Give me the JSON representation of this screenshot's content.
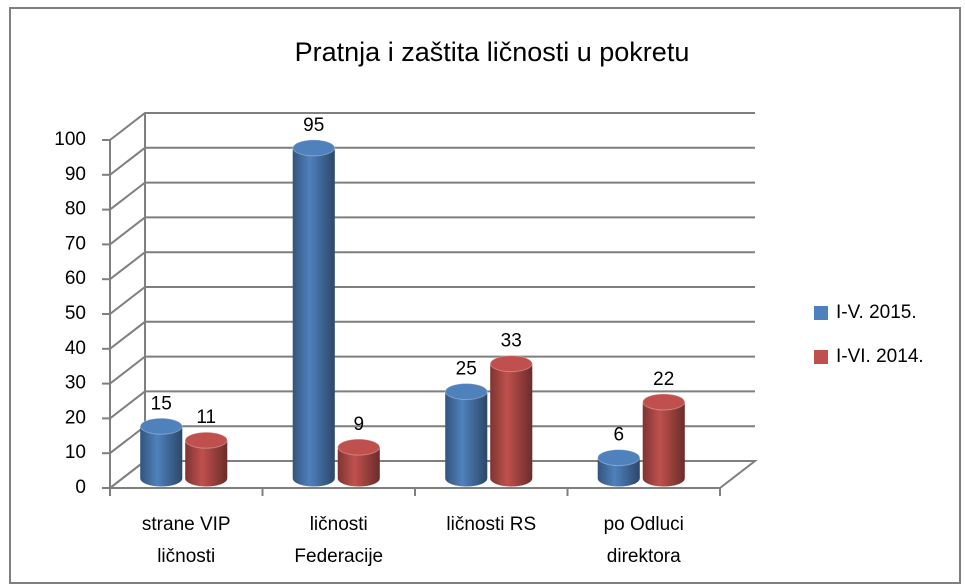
{
  "chart_data": {
    "type": "bar3d",
    "title": "Pratnja i zaštita ličnosti u pokretu",
    "categories": [
      "strane VIP ličnosti",
      "ličnosti Federacije",
      "ličnosti RS",
      "po Odluci direktora"
    ],
    "series": [
      {
        "name": "I-V. 2015.",
        "color": "#4f81bd",
        "values": [
          15,
          95,
          25,
          6
        ]
      },
      {
        "name": "I-VI. 2014.",
        "color": "#c0504d",
        "values": [
          11,
          9,
          33,
          22
        ]
      }
    ],
    "ylim": [
      0,
      100
    ],
    "yticks": [
      0,
      10,
      20,
      30,
      40,
      50,
      60,
      70,
      80,
      90,
      100
    ],
    "grid": true,
    "legend": "right"
  }
}
